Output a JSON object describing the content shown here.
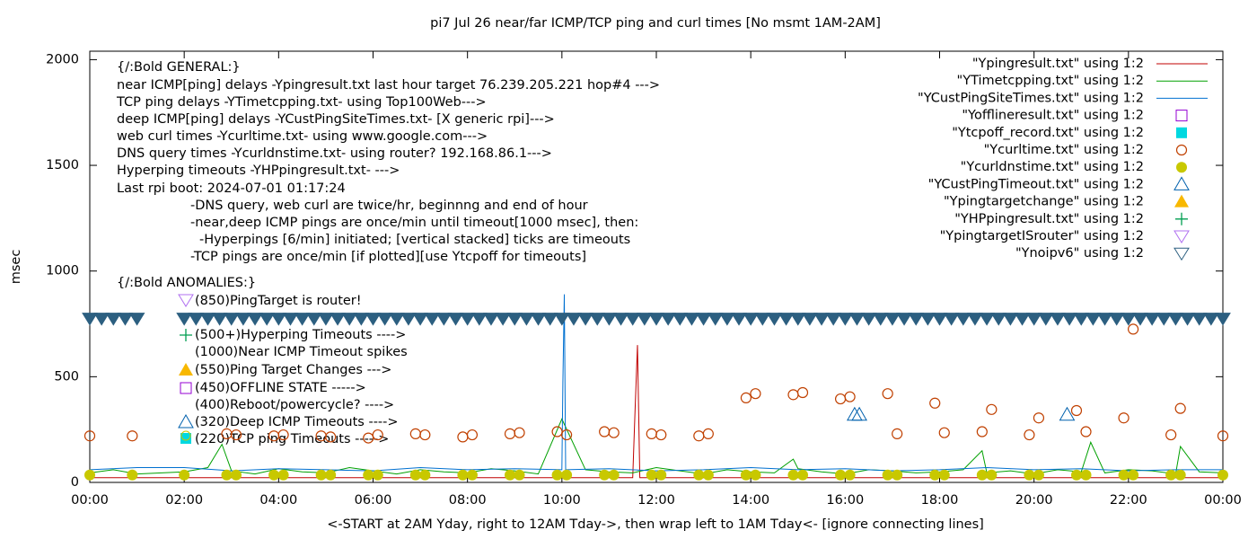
{
  "chart_data": {
    "type": "line",
    "title": "pi7 Jul 26  near/far ICMP/TCP ping and curl times [No msmt 1AM-2AM]",
    "xlabel": "<-START at 2AM Yday, right to 12AM Tday->, then wrap left to 1AM Tday<- [ignore connecting lines]",
    "ylabel": "msec",
    "xlim": [
      0,
      24
    ],
    "ylim": [
      0,
      2040
    ],
    "xticks": [
      {
        "value": 0,
        "label": "00:00"
      },
      {
        "value": 2,
        "label": "02:00"
      },
      {
        "value": 4,
        "label": "04:00"
      },
      {
        "value": 6,
        "label": "06:00"
      },
      {
        "value": 8,
        "label": "08:00"
      },
      {
        "value": 10,
        "label": "10:00"
      },
      {
        "value": 12,
        "label": "12:00"
      },
      {
        "value": 14,
        "label": "14:00"
      },
      {
        "value": 16,
        "label": "16:00"
      },
      {
        "value": 18,
        "label": "18:00"
      },
      {
        "value": 20,
        "label": "20:00"
      },
      {
        "value": 22,
        "label": "22:00"
      },
      {
        "value": 24,
        "label": "00:00"
      }
    ],
    "yticks": [
      0,
      500,
      1000,
      1500,
      2000
    ],
    "legend": "top-right",
    "annotations": [
      "{/:Bold GENERAL:}",
      "near ICMP[ping] delays -Ypingresult.txt last hour target 76.239.205.221 hop#4 --->",
      "TCP ping delays -YTimetcpping.txt- using Top100Web--->",
      "deep ICMP[ping] delays -YCustPingSiteTimes.txt- [X generic rpi]--->",
      "web curl times -Ycurltime.txt- using www.google.com--->",
      "DNS query times -Ycurldnstime.txt- using router? 192.168.86.1--->",
      "Hyperping timeouts -YHPpingresult.txt- --->",
      "Last rpi boot: 2024-07-01 01:17:24",
      "-DNS query, web curl are twice/hr, beginnng and end of hour",
      "-near,deep ICMP pings are once/min until timeout[1000 msec], then:",
      "-Hyperpings [6/min] initiated; [vertical stacked] ticks are timeouts",
      "-TCP pings are once/min [if plotted][use Ytcpoff for timeouts]",
      "{/:Bold ANOMALIES:}",
      "(850)PingTarget is router!",
      "(500+)Hyperping Timeouts ---->",
      "(1000)Near ICMP Timeout spikes",
      "(550)Ping Target Changes --->",
      "(450)OFFLINE STATE ----->",
      "(400)Reboot/powercycle? ---->",
      "(320)Deep ICMP Timeouts ---->",
      "(220)TCP ping Timeouts ----->"
    ],
    "series": [
      {
        "name": "\"Ypingresult.txt\" using 1:2",
        "style": "line",
        "color": "#c00000",
        "x": [
          0,
          2,
          4,
          6,
          8,
          10,
          11.5,
          11.55,
          11.6,
          11.65,
          12,
          14,
          16,
          18,
          20,
          22,
          24
        ],
        "values": [
          22,
          22,
          22,
          22,
          22,
          22,
          22,
          340,
          650,
          22,
          22,
          22,
          22,
          22,
          22,
          22,
          22
        ]
      },
      {
        "name": "\"YTimetcpping.txt\" using 1:2",
        "style": "line",
        "color": "#00a000",
        "x": [
          0,
          0.5,
          1,
          2,
          2.5,
          2.8,
          3,
          3.5,
          4,
          4.5,
          5,
          5.5,
          6,
          6.5,
          7,
          7.5,
          8,
          8.5,
          9,
          9.5,
          10,
          10.5,
          11,
          11.5,
          12,
          12.5,
          13,
          13.5,
          14,
          14.5,
          14.9,
          15,
          15.5,
          16,
          16.5,
          17,
          17.5,
          18,
          18.5,
          18.9,
          19,
          19.5,
          20,
          20.5,
          21,
          21.2,
          21.5,
          22,
          22.5,
          23,
          23.1,
          23.5,
          24
        ],
        "values": [
          45,
          60,
          40,
          50,
          70,
          180,
          55,
          40,
          65,
          50,
          45,
          70,
          55,
          40,
          60,
          50,
          45,
          65,
          55,
          40,
          300,
          60,
          50,
          45,
          70,
          55,
          40,
          60,
          50,
          45,
          110,
          65,
          50,
          40,
          60,
          55,
          45,
          50,
          60,
          150,
          45,
          55,
          40,
          60,
          50,
          190,
          45,
          60,
          55,
          40,
          170,
          50,
          45
        ]
      },
      {
        "name": "\"YCustPingSiteTimes.txt\" using 1:2",
        "style": "line",
        "color": "#0070d0",
        "x": [
          0,
          1,
          2,
          3,
          4,
          5,
          6,
          7,
          8,
          9,
          10,
          10.02,
          10.05,
          10.08,
          11,
          12,
          13,
          14,
          15,
          16,
          17,
          18,
          19,
          20,
          21,
          22,
          23,
          24
        ],
        "values": [
          60,
          70,
          70,
          55,
          65,
          60,
          55,
          70,
          60,
          65,
          60,
          470,
          890,
          60,
          65,
          55,
          60,
          70,
          60,
          65,
          55,
          60,
          70,
          60,
          65,
          55,
          60,
          60
        ]
      },
      {
        "name": "\"Yofflineresult.txt\" using 1:2",
        "style": "square-open",
        "color": "#9400d3",
        "x": [],
        "values": []
      },
      {
        "name": "\"Ytcpoff_record.txt\" using 1:2",
        "style": "square-filled",
        "color": "#00d8e0",
        "x": [],
        "values": []
      },
      {
        "name": "\"Ycurltime.txt\" using 1:2",
        "style": "circle-open",
        "color": "#c04000",
        "x": [
          0,
          0.9,
          2.9,
          3.1,
          3.9,
          4.1,
          4.9,
          5.1,
          5.9,
          6.1,
          6.9,
          7.1,
          7.9,
          8.1,
          8.9,
          9.1,
          9.9,
          10.1,
          10.9,
          11.1,
          11.9,
          12.1,
          12.9,
          13.1,
          13.9,
          14.1,
          14.9,
          15.1,
          15.9,
          16.1,
          16.9,
          17.1,
          17.9,
          18.1,
          18.9,
          19.1,
          19.9,
          20.1,
          20.9,
          21.1,
          21.9,
          22.1,
          22.9,
          23.1,
          24
        ],
        "values": [
          220,
          220,
          230,
          225,
          220,
          225,
          220,
          215,
          210,
          225,
          230,
          225,
          215,
          225,
          230,
          235,
          240,
          225,
          240,
          235,
          230,
          225,
          220,
          230,
          400,
          420,
          415,
          425,
          395,
          405,
          420,
          230,
          375,
          235,
          240,
          345,
          225,
          305,
          340,
          240,
          305,
          725,
          225,
          350,
          220
        ]
      },
      {
        "name": "\"Ycurldnstime.txt\" using 1:2",
        "style": "circle-filled",
        "color": "#c8c800",
        "x": [
          0,
          0.9,
          2,
          2.9,
          3.1,
          3.9,
          4.1,
          4.9,
          5.1,
          5.9,
          6.1,
          6.9,
          7.1,
          7.9,
          8.1,
          8.9,
          9.1,
          9.9,
          10.1,
          10.9,
          11.1,
          11.9,
          12.1,
          12.9,
          13.1,
          13.9,
          14.1,
          14.9,
          15.1,
          15.9,
          16.1,
          16.9,
          17.1,
          17.9,
          18.1,
          18.9,
          19.1,
          19.9,
          20.1,
          20.9,
          21.1,
          21.9,
          22.1,
          22.9,
          23.1,
          24
        ],
        "values": [
          35,
          35,
          35,
          35,
          35,
          35,
          35,
          35,
          35,
          35,
          35,
          35,
          35,
          35,
          35,
          35,
          35,
          35,
          35,
          35,
          35,
          35,
          35,
          35,
          35,
          35,
          35,
          35,
          35,
          35,
          35,
          35,
          35,
          35,
          35,
          35,
          35,
          35,
          35,
          35,
          35,
          35,
          35,
          35,
          35,
          35
        ]
      },
      {
        "name": "\"YCustPingTimeout.txt\" using 1:2",
        "style": "triangle-open",
        "color": "#0060ad",
        "x": [
          16.2,
          16.3,
          20.7
        ],
        "values": [
          320,
          320,
          320
        ]
      },
      {
        "name": "\"Ypingtargetchange\" using 1:2",
        "style": "triangle-filled",
        "color": "#f8b800",
        "x": [],
        "values": []
      },
      {
        "name": "\"YHPpingresult.txt\" using 1:2",
        "style": "plus",
        "color": "#009e50",
        "x": [],
        "values": []
      },
      {
        "name": "\"YpingtargetISrouter\" using 1:2",
        "style": "triangle-down-open",
        "color": "#b070f0",
        "x": [],
        "values": []
      },
      {
        "name": "\"Ynoipv6\" using 1:2",
        "style": "triangle-down-band",
        "color": "#2c5f80",
        "x": [
          0,
          0.25,
          0.5,
          0.75,
          1,
          2,
          2.25,
          2.5,
          2.75,
          3,
          3.25,
          3.5,
          3.75,
          4,
          4.25,
          4.5,
          4.75,
          5,
          5.25,
          5.5,
          5.75,
          6,
          6.25,
          6.5,
          6.75,
          7,
          7.25,
          7.5,
          7.75,
          8,
          8.25,
          8.5,
          8.75,
          9,
          9.25,
          9.5,
          9.75,
          10,
          10.25,
          10.5,
          10.75,
          11,
          11.25,
          11.5,
          11.75,
          12,
          12.25,
          12.5,
          12.75,
          13,
          13.25,
          13.5,
          13.75,
          14,
          14.25,
          14.5,
          14.75,
          15,
          15.25,
          15.5,
          15.75,
          16,
          16.25,
          16.5,
          16.75,
          17,
          17.25,
          17.5,
          17.75,
          18,
          18.25,
          18.5,
          18.75,
          19,
          19.25,
          19.5,
          19.75,
          20,
          20.25,
          20.5,
          20.75,
          21,
          21.25,
          21.5,
          21.75,
          22,
          22.25,
          22.5,
          22.75,
          23,
          23.25,
          23.5,
          23.75,
          24
        ],
        "values": [
          775,
          775,
          775,
          775,
          775,
          775,
          775,
          775,
          775,
          775,
          775,
          775,
          775,
          775,
          775,
          775,
          775,
          775,
          775,
          775,
          775,
          775,
          775,
          775,
          775,
          775,
          775,
          775,
          775,
          775,
          775,
          775,
          775,
          775,
          775,
          775,
          775,
          775,
          775,
          775,
          775,
          775,
          775,
          775,
          775,
          775,
          775,
          775,
          775,
          775,
          775,
          775,
          775,
          775,
          775,
          775,
          775,
          775,
          775,
          775,
          775,
          775,
          775,
          775,
          775,
          775,
          775,
          775,
          775,
          775,
          775,
          775,
          775,
          775,
          775,
          775,
          775,
          775,
          775,
          775,
          775,
          775,
          775,
          775,
          775,
          775,
          775,
          775,
          775,
          775,
          775,
          775,
          775,
          775
        ]
      }
    ]
  }
}
